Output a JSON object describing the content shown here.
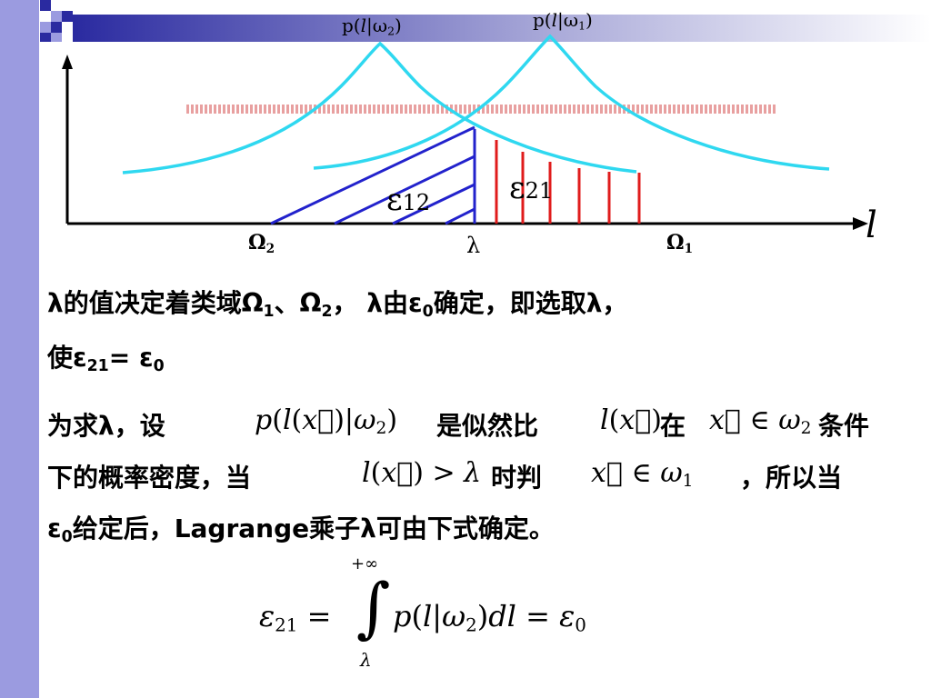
{
  "diagram": {
    "curve_label_w2": "p(l|ω2)",
    "curve_label_w1": "p(l|ω1)",
    "region_w2": "Ω2",
    "threshold": "λ",
    "region_w1": "Ω1",
    "axis_label": "l",
    "eps12": "ε12",
    "eps21": "ε21"
  },
  "text": {
    "line1_a": "λ的值决定着类域Ω",
    "line1_sub1": "1",
    "line1_b": "、Ω",
    "line1_sub2": "2",
    "line1_c": "，  λ由ε",
    "line1_sub3": "0",
    "line1_d": "确定，即选取λ，",
    "line2_a": "使ε",
    "line2_sub1": "21",
    "line2_b": "= ε",
    "line2_sub2": "0",
    "p3_a": "为求λ，设",
    "p3_formula1": "p(l(x⃗)|ω2)",
    "p3_b": "是似然比",
    "p3_formula2": "l(x⃗)",
    "p3_c": "在",
    "p3_formula3": "x⃗ ∈ ω2",
    "p3_d": "条件",
    "p4_a": "下的概率密度，当",
    "p4_formula1": "l(x⃗) > λ",
    "p4_b": "时判",
    "p4_formula2": "x⃗ ∈ ω1",
    "p4_c": "，所以当",
    "p5_a": "ε",
    "p5_sub": "0",
    "p5_b": "给定后，Lagrange乘子λ可由下式确定。"
  },
  "equation": {
    "lhs": "ε21 =",
    "upper_limit": "+∞",
    "lower_limit": "λ",
    "integrand": "p(l|ω2)dl = ε0"
  }
}
